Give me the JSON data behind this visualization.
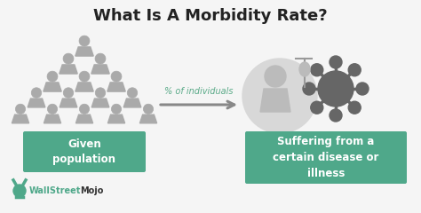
{
  "title": "What Is A Morbidity Rate?",
  "title_fontsize": 13,
  "title_color": "#222222",
  "bg_color": "#f5f5f5",
  "box_color": "#4fa88a",
  "box_text_color": "#ffffff",
  "box1_label": "Given\npopulation",
  "box2_label": "Suffering from a\ncertain disease or\nillness",
  "arrow_label": "% of individuals",
  "arrow_color": "#888888",
  "arrow_label_color": "#5aaa88",
  "logo_color_green": "#4fa88a",
  "logo_color_dark": "#333333",
  "icon_color": "#aaaaaa",
  "icon_outline": "#888888",
  "virus_color": "#666666",
  "sick_bg": "#cccccc",
  "sick_line": "#999999"
}
